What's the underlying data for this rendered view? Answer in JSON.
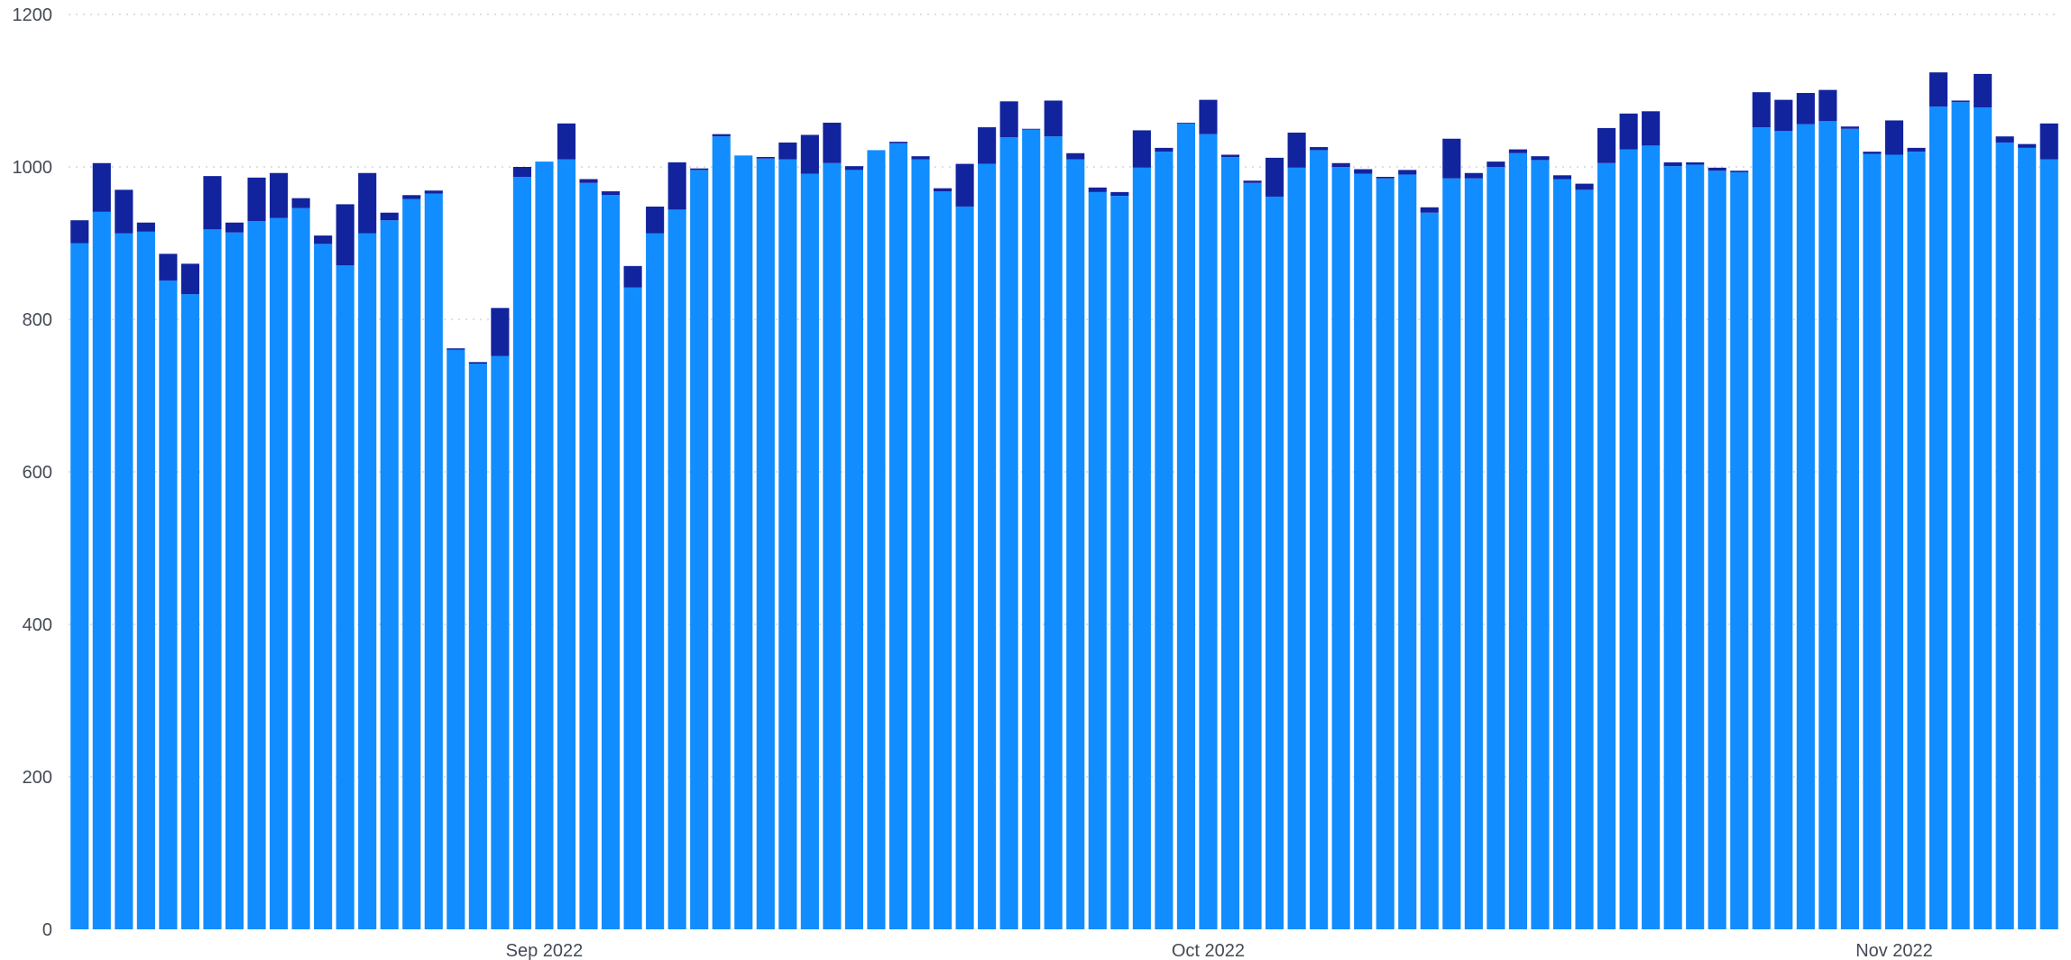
{
  "chart_data": {
    "type": "bar",
    "stacked": true,
    "title": "",
    "xlabel": "",
    "ylabel": "",
    "ylim": [
      0,
      1200
    ],
    "yticks": [
      "0",
      "200",
      "400",
      "600",
      "800",
      "1000",
      "1200"
    ],
    "grid": "horizontal dotted",
    "legend": "none",
    "start_date": "2022-08-11",
    "xtick_labels": [
      {
        "label": "Sep 2022",
        "index": 21
      },
      {
        "label": "Oct 2022",
        "index": 51
      },
      {
        "label": "Nov 2022",
        "index": 82
      }
    ],
    "series": [
      {
        "color": "#118dff",
        "values": [
          900,
          941,
          913,
          915,
          851,
          833,
          918,
          914,
          929,
          933,
          946,
          899,
          871,
          913,
          930,
          958,
          965,
          760,
          742,
          752,
          987,
          1007,
          1010,
          979,
          963,
          842,
          913,
          944,
          996,
          1040,
          1015,
          1011,
          1010,
          991,
          1005,
          996,
          1022,
          1031,
          1010,
          968,
          948,
          1004,
          1039,
          1049,
          1040,
          1010,
          967,
          962,
          999,
          1020,
          1057,
          1043,
          1013,
          979,
          961,
          999,
          1022,
          1000,
          991,
          985,
          990,
          940,
          985,
          985,
          1000,
          1018,
          1009,
          984,
          970,
          1005,
          1023,
          1028,
          1001,
          1003,
          995,
          993,
          1052,
          1047,
          1056,
          1060,
          1050,
          1017,
          1016,
          1020,
          1079,
          1085,
          1078,
          1032,
          1025,
          1010
        ]
      },
      {
        "color": "#12239e",
        "values": [
          30,
          64,
          57,
          12,
          35,
          40,
          70,
          13,
          57,
          59,
          13,
          11,
          80,
          79,
          10,
          5,
          4,
          2,
          2,
          63,
          13,
          0,
          47,
          5,
          5,
          28,
          35,
          62,
          2,
          3,
          0,
          2,
          22,
          51,
          53,
          5,
          0,
          2,
          4,
          4,
          56,
          48,
          47,
          1,
          47,
          8,
          6,
          5,
          49,
          5,
          1,
          45,
          3,
          3,
          51,
          46,
          4,
          5,
          6,
          2,
          6,
          7,
          52,
          7,
          7,
          5,
          5,
          5,
          8,
          46,
          47,
          45,
          5,
          3,
          4,
          2,
          46,
          41,
          41,
          41,
          3,
          3,
          45,
          5,
          45,
          2,
          44,
          8,
          5,
          47
        ]
      }
    ]
  }
}
